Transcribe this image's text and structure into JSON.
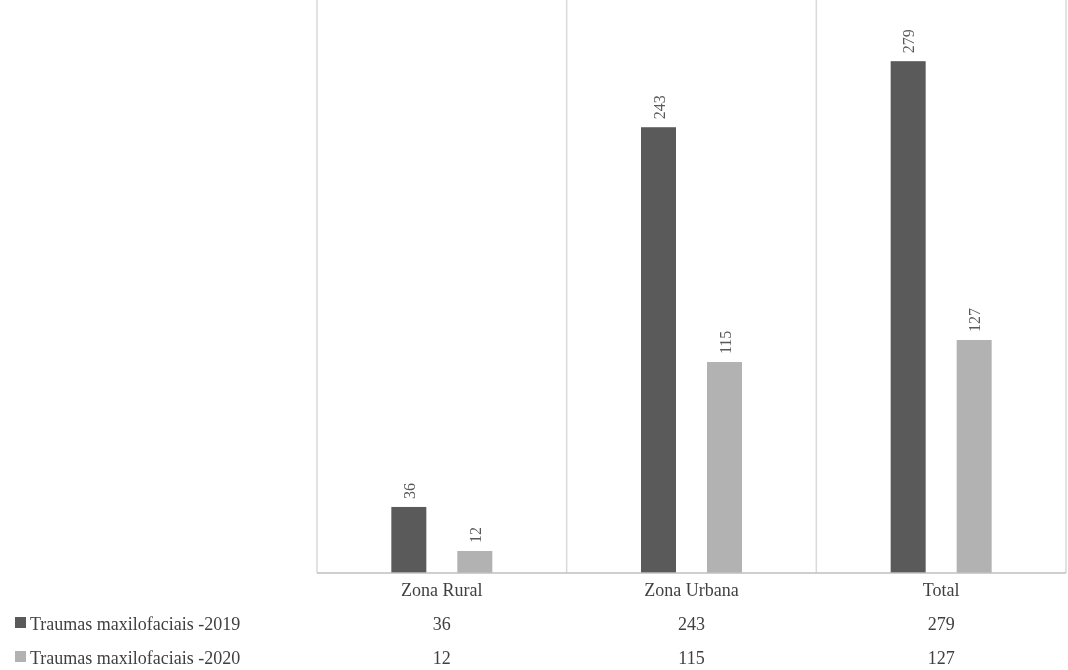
{
  "chart_data": {
    "type": "bar",
    "categories": [
      "Zona Rural",
      "Zona Urbana",
      "Total"
    ],
    "series": [
      {
        "name": "Traumas maxilofaciais -2019",
        "color": "#5a5a5a",
        "values": [
          36,
          243,
          279
        ],
        "value_labels": [
          "36",
          "243",
          "279"
        ]
      },
      {
        "name": "Traumas maxilofaciais -2020",
        "color": "#b2b2b2",
        "values": [
          12,
          115,
          127
        ],
        "value_labels": [
          "12",
          "115",
          "127"
        ]
      }
    ],
    "annotations": [
      "36",
      "243",
      "279",
      "12",
      "115",
      "127"
    ],
    "relative": false,
    "grid": "x",
    "legend": "bottom left"
  }
}
